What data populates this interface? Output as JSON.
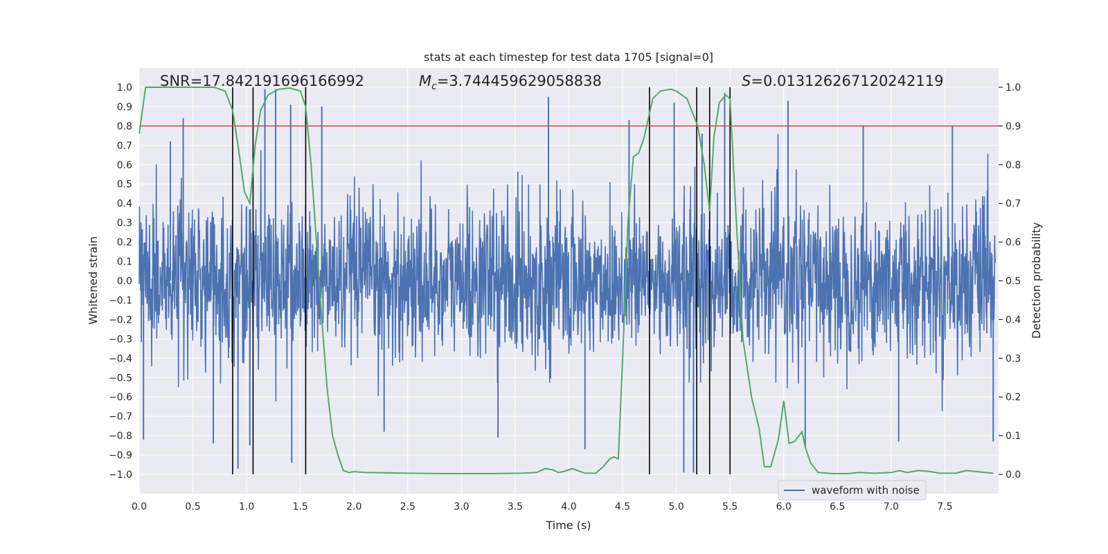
{
  "chart_data": {
    "type": "line",
    "title": "stats at each timestep for test data 1705 [signal=0]",
    "xlabel": "Time (s)",
    "ylabel": "Whitened strain",
    "y2label": "Detection probability",
    "xlim": [
      0.0,
      8.0
    ],
    "ylim": [
      -1.1,
      1.1
    ],
    "y2lim": [
      -0.05,
      1.05
    ],
    "xticks": [
      "0.0",
      "0.5",
      "1.0",
      "1.5",
      "2.0",
      "2.5",
      "3.0",
      "3.5",
      "4.0",
      "4.5",
      "5.0",
      "5.5",
      "6.0",
      "6.5",
      "7.0",
      "7.5"
    ],
    "yticks": [
      "1.0",
      "0.9",
      "0.8",
      "0.7",
      "0.6",
      "0.5",
      "0.4",
      "0.3",
      "0.2",
      "0.1",
      "0.0",
      "-0.1",
      "-0.2",
      "-0.3",
      "-0.4",
      "-0.5",
      "-0.6",
      "-0.7",
      "-0.8",
      "-0.9",
      "-1.0"
    ],
    "y2ticks": [
      "1.0",
      "0.9",
      "0.8",
      "0.7",
      "0.6",
      "0.5",
      "0.4",
      "0.3",
      "0.2",
      "0.1",
      "0.0"
    ],
    "annotations": {
      "snr": "SNR=17.842191696166992",
      "mc_symbol": "M",
      "mc_sub": "c",
      "mc_value": "=3.744459629058838",
      "s_symbol": "S",
      "s_value": "=0.013126267120242119"
    },
    "legend": {
      "label": "waveform with noise",
      "position": "lower-right"
    },
    "threshold": {
      "y2": 0.9,
      "color": "#c44e52"
    },
    "vlines_x": [
      0.87,
      1.06,
      1.55,
      4.75,
      5.19,
      5.31,
      5.5
    ],
    "series": [
      {
        "name": "waveform with noise",
        "kind": "noise",
        "color": "#4c72b0",
        "typical_amplitude": 0.32,
        "spike_peaks": [
          {
            "x": 0.04,
            "y": -0.82
          },
          {
            "x": 0.29,
            "y": 0.72
          },
          {
            "x": 0.41,
            "y": 0.84
          },
          {
            "x": 0.69,
            "y": -0.84
          },
          {
            "x": 0.92,
            "y": -0.97
          },
          {
            "x": 1.03,
            "y": -0.85
          },
          {
            "x": 1.17,
            "y": 0.99
          },
          {
            "x": 1.27,
            "y": 0.99
          },
          {
            "x": 1.41,
            "y": 0.91
          },
          {
            "x": 1.42,
            "y": -0.94
          },
          {
            "x": 1.7,
            "y": 0.9
          },
          {
            "x": 2.28,
            "y": -0.78
          },
          {
            "x": 3.34,
            "y": -0.81
          },
          {
            "x": 3.81,
            "y": 0.95
          },
          {
            "x": 4.15,
            "y": -0.87
          },
          {
            "x": 4.56,
            "y": 0.83
          },
          {
            "x": 4.98,
            "y": 0.92
          },
          {
            "x": 5.07,
            "y": -0.99
          },
          {
            "x": 5.16,
            "y": -0.99
          },
          {
            "x": 5.24,
            "y": 0.76
          },
          {
            "x": 5.45,
            "y": 0.97
          },
          {
            "x": 6.04,
            "y": 0.93
          },
          {
            "x": 6.2,
            "y": -0.86
          },
          {
            "x": 6.74,
            "y": 0.8
          },
          {
            "x": 7.07,
            "y": -0.83
          },
          {
            "x": 7.57,
            "y": 0.8
          },
          {
            "x": 7.95,
            "y": -0.83
          }
        ]
      },
      {
        "name": "detection probability",
        "kind": "line",
        "axis": "y2",
        "color": "#55a868",
        "x": [
          0.0,
          0.06,
          0.15,
          0.3,
          0.45,
          0.6,
          0.7,
          0.8,
          0.87,
          0.92,
          0.98,
          1.03,
          1.08,
          1.13,
          1.2,
          1.3,
          1.4,
          1.5,
          1.55,
          1.6,
          1.65,
          1.7,
          1.75,
          1.8,
          1.85,
          1.9,
          1.95,
          2.0,
          2.1,
          2.3,
          2.5,
          2.8,
          3.0,
          3.3,
          3.55,
          3.7,
          3.78,
          3.85,
          3.9,
          3.96,
          4.03,
          4.08,
          4.15,
          4.25,
          4.32,
          4.38,
          4.42,
          4.46,
          4.5,
          4.55,
          4.6,
          4.65,
          4.7,
          4.78,
          4.85,
          4.95,
          5.0,
          5.05,
          5.1,
          5.2,
          5.26,
          5.31,
          5.35,
          5.4,
          5.46,
          5.5,
          5.55,
          5.62,
          5.7,
          5.77,
          5.82,
          5.88,
          5.95,
          6.0,
          6.05,
          6.1,
          6.17,
          6.2,
          6.25,
          6.32,
          6.45,
          6.6,
          6.7,
          6.85,
          7.0,
          7.08,
          7.15,
          7.25,
          7.35,
          7.45,
          7.6,
          7.7,
          7.8,
          7.95
        ],
        "y": [
          0.88,
          1.0,
          1.0,
          1.0,
          1.0,
          1.0,
          1.0,
          0.99,
          0.94,
          0.85,
          0.73,
          0.7,
          0.85,
          0.94,
          0.98,
          0.995,
          0.998,
          0.99,
          0.95,
          0.8,
          0.6,
          0.4,
          0.22,
          0.1,
          0.05,
          0.01,
          0.005,
          0.007,
          0.005,
          0.004,
          0.003,
          0.002,
          0.002,
          0.002,
          0.003,
          0.005,
          0.015,
          0.012,
          0.005,
          0.008,
          0.015,
          0.01,
          0.003,
          0.003,
          0.02,
          0.04,
          0.045,
          0.04,
          0.3,
          0.65,
          0.82,
          0.83,
          0.87,
          0.97,
          0.99,
          0.995,
          0.99,
          0.98,
          0.97,
          0.9,
          0.8,
          0.68,
          0.87,
          0.96,
          0.98,
          0.97,
          0.7,
          0.35,
          0.2,
          0.12,
          0.02,
          0.02,
          0.09,
          0.19,
          0.08,
          0.085,
          0.11,
          0.07,
          0.03,
          0.005,
          0.002,
          0.002,
          0.005,
          0.003,
          0.005,
          0.01,
          0.005,
          0.01,
          0.008,
          0.003,
          0.003,
          0.01,
          0.007,
          0.003
        ]
      }
    ]
  }
}
